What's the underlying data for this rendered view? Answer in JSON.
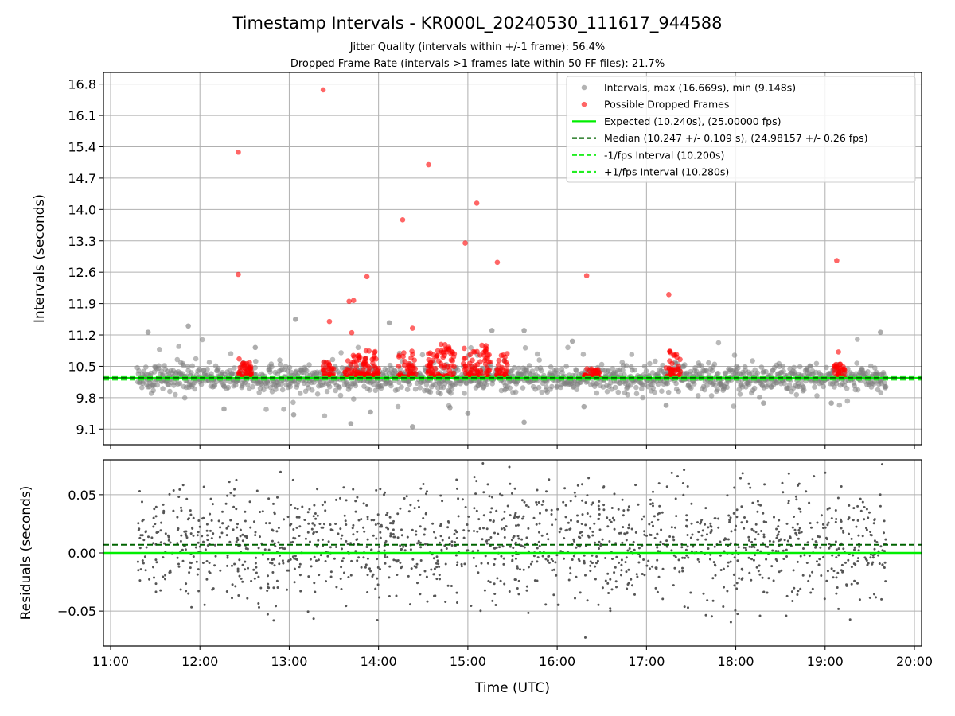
{
  "chart_data": {
    "title": "Timestamp Intervals - KR000L_20240530_111617_944588",
    "subtitle_lines": [
      "Jitter Quality (intervals within +/-1 frame): 56.4%",
      "Dropped Frame Rate (intervals >1 frames late within 50 FF files): 21.7%"
    ],
    "colors": {
      "intervals": "#808080",
      "dropped": "#ff0000",
      "expected": "#00ee00",
      "median": "#006400",
      "fps_band": "#22ee22",
      "residuals": "#555555"
    },
    "x_axis": {
      "label": "Time (UTC)",
      "unit": "hours UTC",
      "range": [
        10.92,
        20.08
      ],
      "tick_values": [
        11,
        12,
        13,
        14,
        15,
        16,
        17,
        18,
        19,
        20
      ],
      "tick_labels": [
        "11:00",
        "12:00",
        "13:00",
        "14:00",
        "15:00",
        "16:00",
        "17:00",
        "18:00",
        "19:00",
        "20:00"
      ]
    },
    "panels": [
      {
        "type": "scatter",
        "ylabel": "Intervals (seconds)",
        "ylim": [
          8.75,
          17.06
        ],
        "y_ticks": [
          9.1,
          9.8,
          10.5,
          11.2,
          11.9,
          12.6,
          13.3,
          14.0,
          14.7,
          15.4,
          16.1,
          16.8
        ],
        "y_tick_labels": [
          "9.1",
          "9.8",
          "10.5",
          "11.2",
          "11.9",
          "12.6",
          "13.3",
          "14.0",
          "14.7",
          "15.4",
          "16.1",
          "16.8"
        ],
        "grid": true,
        "legend_position": "top-right",
        "reference_lines": [
          {
            "key": "expected",
            "value": 10.24,
            "style": "solid"
          },
          {
            "key": "median",
            "value": 10.247,
            "style": "dashed"
          },
          {
            "key": "minus_fps",
            "value": 10.2,
            "style": "dashed"
          },
          {
            "key": "plus_fps",
            "value": 10.28,
            "style": "dashed"
          }
        ],
        "legend": [
          {
            "key": "intervals",
            "label": "Intervals, max (16.669s), min (9.148s)",
            "marker": "dot"
          },
          {
            "key": "dropped",
            "label": "Possible Dropped Frames",
            "marker": "dot"
          },
          {
            "key": "expected",
            "label": "Expected (10.240s), (25.00000 fps)",
            "marker": "solid"
          },
          {
            "key": "median",
            "label": "Median (10.247 +/- 0.109 s), (24.98157 +/- 0.26 fps)",
            "marker": "dashed"
          },
          {
            "key": "minus_fps",
            "label": "-1/fps Interval (10.200s)",
            "marker": "dashed"
          },
          {
            "key": "plus_fps",
            "label": "+1/fps Interval (10.280s)",
            "marker": "dashed"
          }
        ],
        "series": [
          {
            "name": "Intervals, max (16.669s), min (9.148s)",
            "key": "intervals",
            "x_range": [
              11.3,
              19.68
            ],
            "y_center": 10.24,
            "y_spread": 0.2,
            "approx_count": 1500,
            "outlier_points": [
              [
                11.42,
                11.26
              ],
              [
                11.87,
                11.4
              ],
              [
                12.62,
                10.92
              ],
              [
                13.07,
                11.55
              ],
              [
                14.12,
                11.47
              ],
              [
                15.27,
                11.3
              ],
              [
                15.63,
                11.3
              ],
              [
                16.17,
                11.06
              ],
              [
                19.62,
                11.26
              ],
              [
                13.05,
                9.42
              ],
              [
                13.69,
                9.22
              ],
              [
                14.38,
                9.15
              ],
              [
                15.63,
                9.25
              ],
              [
                12.27,
                9.55
              ],
              [
                18.31,
                9.68
              ],
              [
                19.07,
                9.68
              ],
              [
                17.22,
                9.63
              ],
              [
                13.91,
                9.48
              ],
              [
                15.0,
                9.45
              ],
              [
                14.8,
                9.58
              ],
              [
                16.3,
                9.6
              ]
            ]
          },
          {
            "name": "Possible Dropped Frames",
            "key": "dropped",
            "clusters": [
              {
                "x": [
                  12.43,
                  12.58
                ],
                "y_max": 10.75
              },
              {
                "x": [
                  13.38,
                  13.5
                ],
                "y_max": 10.6
              },
              {
                "x": [
                  13.62,
                  14.0
                ],
                "y_max": 10.85
              },
              {
                "x": [
                  14.22,
                  14.42
                ],
                "y_max": 10.9
              },
              {
                "x": [
                  14.55,
                  14.85
                ],
                "y_max": 11.0
              },
              {
                "x": [
                  14.95,
                  15.25
                ],
                "y_max": 11.0
              },
              {
                "x": [
                  15.32,
                  15.45
                ],
                "y_max": 10.8
              },
              {
                "x": [
                  16.3,
                  16.47
                ],
                "y_max": 10.45
              },
              {
                "x": [
                  17.22,
                  17.38
                ],
                "y_max": 10.85
              },
              {
                "x": [
                  19.1,
                  19.22
                ],
                "y_max": 10.55
              }
            ],
            "outlier_points": [
              [
                12.43,
                15.28
              ],
              [
                12.43,
                12.55
              ],
              [
                13.38,
                16.67
              ],
              [
                13.45,
                11.5
              ],
              [
                13.67,
                11.95
              ],
              [
                13.72,
                11.97
              ],
              [
                13.7,
                11.25
              ],
              [
                13.87,
                12.5
              ],
              [
                14.27,
                13.77
              ],
              [
                14.38,
                11.35
              ],
              [
                14.56,
                15.0
              ],
              [
                14.97,
                13.25
              ],
              [
                15.1,
                14.14
              ],
              [
                15.33,
                12.82
              ],
              [
                16.33,
                12.52
              ],
              [
                17.25,
                12.1
              ],
              [
                19.13,
                12.86
              ],
              [
                19.15,
                10.82
              ]
            ]
          }
        ]
      },
      {
        "type": "scatter",
        "ylabel": "Residuals (seconds)",
        "ylim": [
          -0.08,
          0.08
        ],
        "y_ticks": [
          -0.05,
          0.0,
          0.05
        ],
        "y_tick_labels": [
          "−0.05",
          "0.00",
          "0.05"
        ],
        "grid": true,
        "reference_lines": [
          {
            "key": "expected",
            "value": 0.0,
            "style": "solid"
          },
          {
            "key": "median",
            "value": 0.007,
            "style": "dashed"
          }
        ],
        "series": [
          {
            "key": "residuals",
            "x_range": [
              11.3,
              19.68
            ],
            "y_range": [
              -0.08,
              0.08
            ],
            "approx_count": 1500
          }
        ]
      }
    ]
  }
}
